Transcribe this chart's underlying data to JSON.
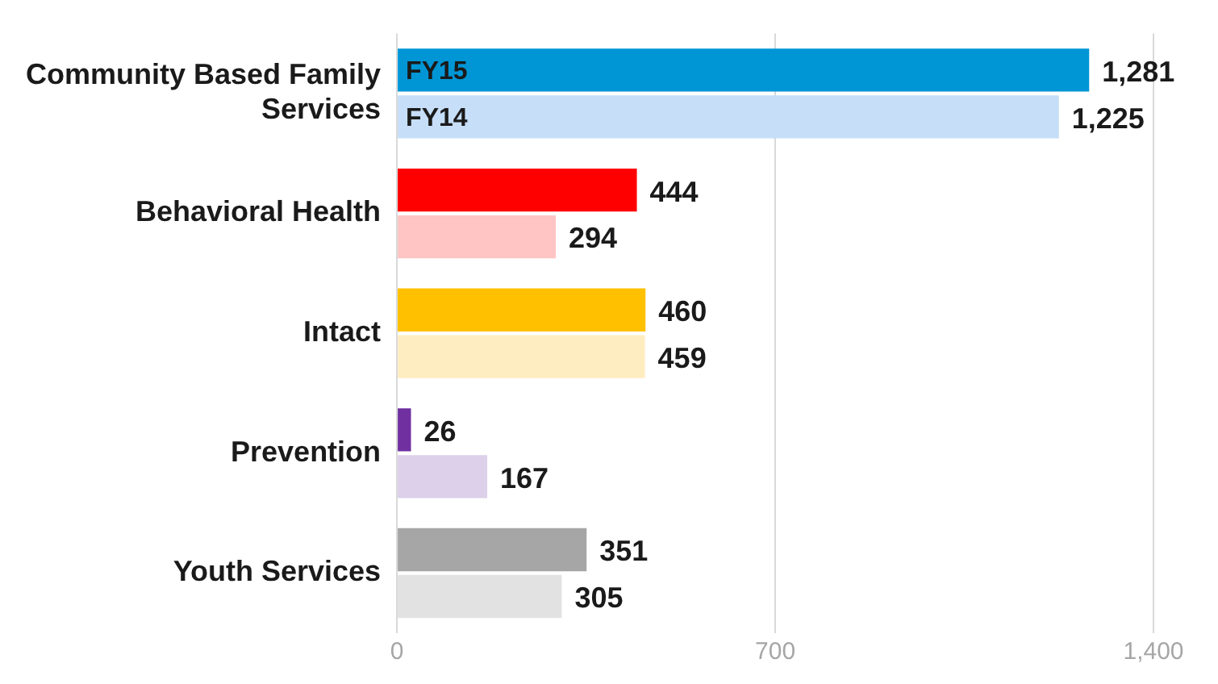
{
  "chart_data": {
    "type": "bar",
    "orientation": "horizontal",
    "categories": [
      "Community Based Family Services",
      "Behavioral Health",
      "Intact",
      "Prevention",
      "Youth Services"
    ],
    "series": [
      {
        "name": "FY15",
        "colors": [
          "#0096d6",
          "#ff0000",
          "#ffc000",
          "#7030a0",
          "#a6a6a6"
        ],
        "values": [
          1281,
          444,
          460,
          26,
          351
        ],
        "value_labels": [
          "1,281",
          "444",
          "460",
          "26",
          "351"
        ]
      },
      {
        "name": "FY14",
        "colors": [
          "#c6def8",
          "#ffc4c4",
          "#ffedc2",
          "#dcd0ea",
          "#e2e2e2"
        ],
        "values": [
          1225,
          294,
          459,
          167,
          305
        ],
        "value_labels": [
          "1,225",
          "294",
          "459",
          "167",
          "305"
        ]
      }
    ],
    "xlim": [
      0,
      1400
    ],
    "xticks": [
      0,
      700,
      {
        "value": 1400,
        "label": "1,400"
      }
    ],
    "grid": "x",
    "legend": false
  }
}
